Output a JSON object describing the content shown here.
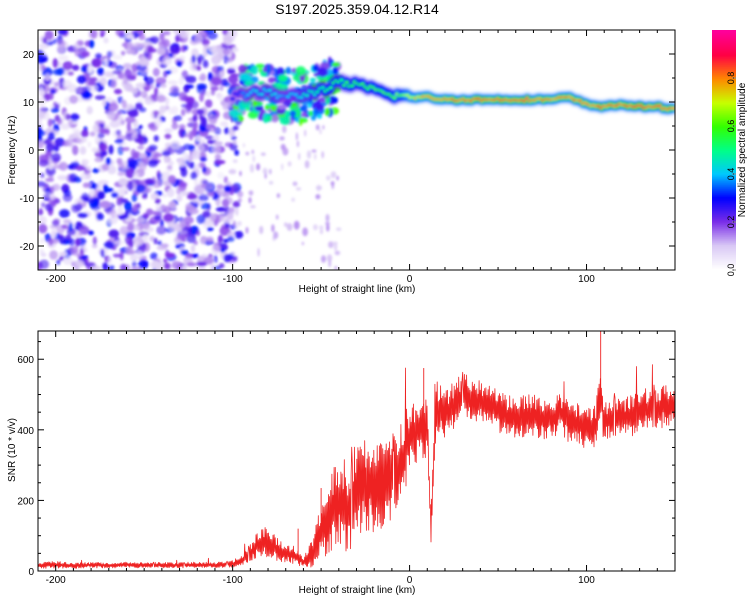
{
  "title": "S197.2025.359.04.12.R14",
  "chart_data": [
    {
      "type": "heatmap",
      "name": "spectrogram",
      "xlabel": "Height of straight line (km)",
      "ylabel": "Frequency (Hz)",
      "xlim": [
        -210,
        150
      ],
      "ylim": [
        -25,
        25
      ],
      "xticks": [
        -200,
        -100,
        0,
        100
      ],
      "yticks": [
        -20,
        -10,
        0,
        10,
        20
      ],
      "grid": false,
      "colorbar": {
        "label": "Normalized spectral amplitude",
        "range": [
          0,
          1
        ],
        "ticks": [
          0.0,
          0.2,
          0.4,
          0.6,
          0.8
        ],
        "tick_labels": [
          "0.0",
          "0.2",
          "0.4",
          "0.6",
          "0.8"
        ],
        "colors": [
          "#ffffff",
          "#d9c8f5",
          "#7a2ee8",
          "#0000ff",
          "#00c8ff",
          "#00ff88",
          "#33ff00",
          "#c8ff00",
          "#ff8800",
          "#ff0044",
          "#ff0099"
        ]
      },
      "regions": [
        {
          "description": "diffuse purple noise",
          "x_range": [
            -210,
            -100
          ],
          "freq_range": [
            -25,
            25
          ],
          "amplitude": 0.15
        },
        {
          "description": "noisy onset",
          "x_range": [
            -100,
            -40
          ],
          "freq_range": [
            5,
            17
          ],
          "amplitude": 0.35
        }
      ],
      "ridge": {
        "x": [
          -100,
          -90,
          -80,
          -70,
          -60,
          -50,
          -40,
          -30,
          -20,
          -10,
          0,
          10,
          20,
          30,
          40,
          50,
          60,
          70,
          80,
          90,
          100,
          110,
          120,
          130,
          140,
          150
        ],
        "freq": [
          11,
          12,
          12,
          11,
          11.5,
          12.5,
          14,
          13.5,
          12.5,
          11.5,
          11,
          11,
          10.5,
          10.5,
          10.5,
          10.5,
          10.5,
          10.5,
          10.5,
          11,
          9.5,
          9,
          9.5,
          9,
          9,
          8.5
        ],
        "amplitude": [
          0.3,
          0.4,
          0.45,
          0.4,
          0.45,
          0.5,
          0.55,
          0.6,
          0.6,
          0.65,
          0.7,
          0.85,
          0.85,
          0.88,
          0.9,
          0.9,
          0.92,
          0.9,
          0.85,
          0.85,
          0.85,
          0.9,
          0.9,
          0.92,
          0.9,
          0.85
        ]
      }
    },
    {
      "type": "line",
      "name": "snr",
      "xlabel": "Height of straight line (km)",
      "ylabel": "SNR (10 * v/v)",
      "xlim": [
        -210,
        150
      ],
      "ylim": [
        0,
        680
      ],
      "xticks": [
        -200,
        -100,
        0,
        100
      ],
      "yticks": [
        0,
        200,
        400,
        600
      ],
      "grid": false,
      "color": "#ee2222",
      "series": [
        {
          "name": "SNR",
          "x": [
            -210,
            -200,
            -190,
            -180,
            -170,
            -160,
            -150,
            -140,
            -130,
            -120,
            -110,
            -100,
            -95,
            -90,
            -85,
            -80,
            -75,
            -70,
            -65,
            -60,
            -55,
            -50,
            -45,
            -40,
            -35,
            -30,
            -25,
            -20,
            -15,
            -10,
            -5,
            0,
            5,
            8,
            10,
            12,
            15,
            20,
            25,
            30,
            35,
            40,
            45,
            50,
            55,
            60,
            65,
            70,
            75,
            80,
            85,
            90,
            95,
            100,
            105,
            108,
            110,
            115,
            120,
            125,
            130,
            135,
            140,
            145,
            150
          ],
          "y": [
            15,
            18,
            15,
            17,
            16,
            18,
            16,
            17,
            16,
            18,
            17,
            20,
            30,
            50,
            80,
            85,
            60,
            50,
            45,
            25,
            50,
            110,
            160,
            200,
            180,
            230,
            250,
            240,
            260,
            280,
            300,
            380,
            400,
            390,
            400,
            130,
            470,
            440,
            470,
            500,
            490,
            480,
            470,
            450,
            440,
            430,
            440,
            440,
            430,
            430,
            450,
            420,
            420,
            400,
            410,
            500,
            420,
            440,
            430,
            440,
            450,
            460,
            460,
            470,
            470
          ],
          "spread": [
            8,
            10,
            8,
            8,
            8,
            8,
            8,
            8,
            8,
            8,
            8,
            10,
            15,
            25,
            40,
            45,
            35,
            30,
            25,
            15,
            40,
            80,
            110,
            130,
            130,
            140,
            150,
            140,
            140,
            140,
            120,
            100,
            90,
            90,
            90,
            60,
            70,
            70,
            70,
            60,
            60,
            60,
            60,
            60,
            60,
            60,
            60,
            60,
            60,
            60,
            60,
            60,
            60,
            60,
            60,
            80,
            60,
            60,
            60,
            60,
            60,
            60,
            60,
            60,
            60
          ]
        }
      ]
    }
  ]
}
